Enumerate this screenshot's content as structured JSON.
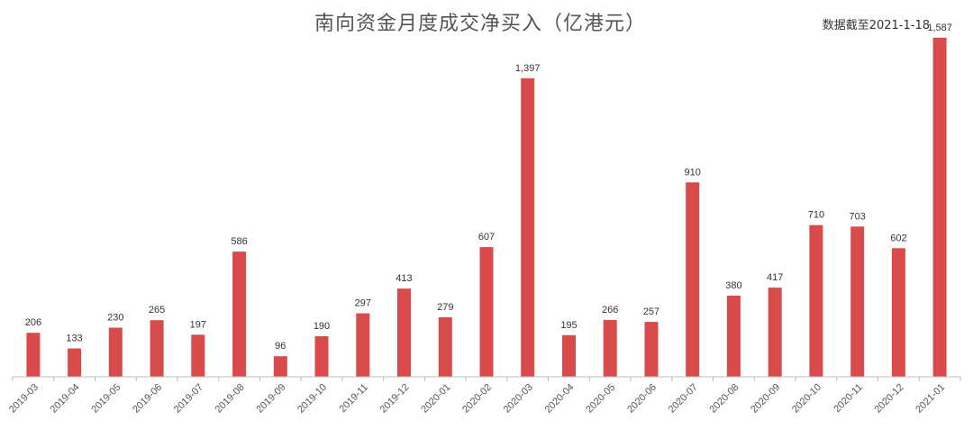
{
  "chart_data": {
    "type": "bar",
    "title": "南向资金月度成交净买入（亿港元）",
    "note": "数据截至2021-1-18",
    "xlabel": "",
    "ylabel": "",
    "ylim": [
      0,
      1700
    ],
    "grid": false,
    "bar_color": "#d94b4b",
    "categories": [
      "2019-03",
      "2019-04",
      "2019-05",
      "2019-06",
      "2019-07",
      "2019-08",
      "2019-09",
      "2019-10",
      "2019-11",
      "2019-12",
      "2020-01",
      "2020-02",
      "2020-03",
      "2020-04",
      "2020-05",
      "2020-06",
      "2020-07",
      "2020-08",
      "2020-09",
      "2020-10",
      "2020-11",
      "2020-12",
      "2021-01"
    ],
    "values": [
      206,
      133,
      230,
      265,
      197,
      586,
      96,
      190,
      297,
      413,
      279,
      607,
      1397,
      195,
      266,
      257,
      910,
      380,
      417,
      710,
      703,
      602,
      1587
    ],
    "value_labels": [
      "206",
      "133",
      "230",
      "265",
      "197",
      "586",
      "96",
      "190",
      "297",
      "413",
      "279",
      "607",
      "1,397",
      "195",
      "266",
      "257",
      "910",
      "380",
      "417",
      "710",
      "703",
      "602",
      "1,587"
    ]
  }
}
